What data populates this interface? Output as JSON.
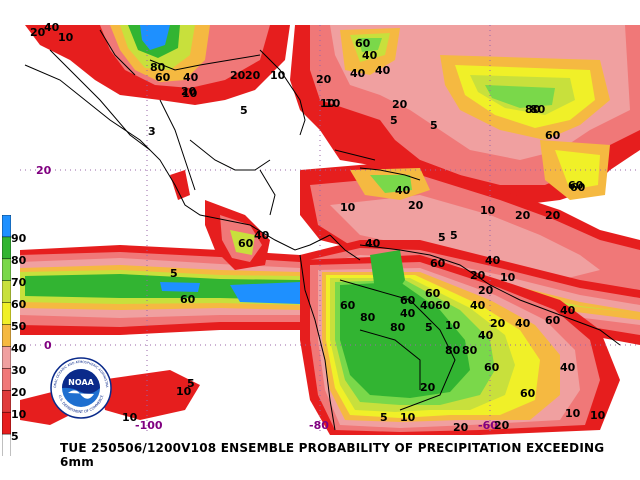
{
  "caption": "TUE 250506/1200V108  ENSEMBLE PROBABILITY OF PRECIPITATION EXCEEDING 6mm",
  "legend": {
    "levels": [
      {
        "label": "90",
        "color": "#1e90ff"
      },
      {
        "label": "80",
        "color": "#32b432"
      },
      {
        "label": "70",
        "color": "#7ad84a"
      },
      {
        "label": "60",
        "color": "#c8e03c"
      },
      {
        "label": "50",
        "color": "#f0f028"
      },
      {
        "label": "40",
        "color": "#f5b941"
      },
      {
        "label": "30",
        "color": "#f0a0a0"
      },
      {
        "label": "20",
        "color": "#f07878"
      },
      {
        "label": "10",
        "color": "#e03c3c"
      },
      {
        "label": "5",
        "color": "#e61e1e"
      },
      {
        "label": "",
        "color": "#ffffff"
      }
    ]
  },
  "coordinates": {
    "lat_20": "20",
    "lat_0": "0",
    "lon_100": "-100",
    "lon_80": "-80",
    "lon_60": "-60"
  },
  "logo": {
    "text": "NOAA",
    "ring_top": "NATIONAL OCEANIC AND ATMOSPHERIC ADMINISTRATION",
    "ring_bottom": "U.S. DEPARTMENT OF COMMERCE"
  },
  "contour_labels": [
    "40",
    "20",
    "10",
    "80",
    "60",
    "40",
    "20",
    "10",
    "20",
    "5",
    "20",
    "10",
    "60",
    "40",
    "10",
    "20",
    "5",
    "3",
    "5",
    "80",
    "60",
    "40",
    "40",
    "20",
    "10",
    "60",
    "80",
    "60",
    "40",
    "20",
    "10",
    "5",
    "60",
    "40",
    "60",
    "5",
    "40",
    "60",
    "80",
    "60",
    "40",
    "60",
    "80",
    "80",
    "20",
    "40",
    "60",
    "10",
    "20",
    "40",
    "60",
    "40",
    "20",
    "10",
    "40",
    "60",
    "10",
    "20",
    "40",
    "5",
    "10",
    "20",
    "20",
    "40",
    "5",
    "40",
    "60",
    "80",
    "60",
    "20",
    "10",
    "5",
    "10",
    "5",
    "10",
    "10",
    "20"
  ]
}
